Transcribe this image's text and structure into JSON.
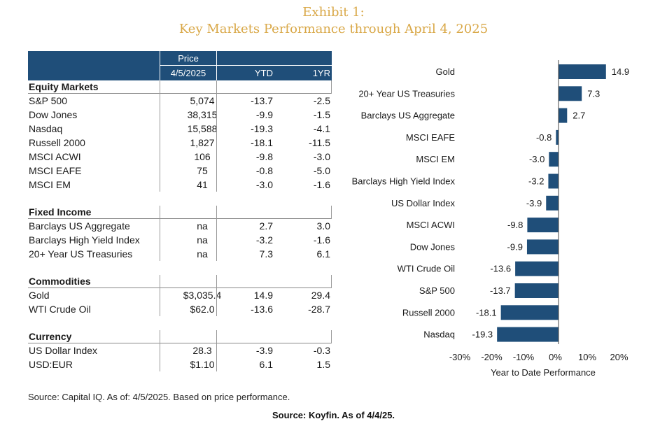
{
  "title": {
    "line1": "Exhibit 1:",
    "line2": "Key Markets Performance through April 4, 2025"
  },
  "table": {
    "header": {
      "price": "Price",
      "date": "4/5/2025",
      "ytd": "YTD",
      "one_yr": "1YR"
    },
    "sections": [
      {
        "title": "Equity Markets",
        "rows": [
          {
            "name": "S&P 500",
            "price": "5,074",
            "ytd": "-13.7",
            "one_yr": "-2.5"
          },
          {
            "name": "Dow Jones",
            "price": "38,315",
            "ytd": "-9.9",
            "one_yr": "-1.5"
          },
          {
            "name": "Nasdaq",
            "price": "15,588",
            "ytd": "-19.3",
            "one_yr": "-4.1"
          },
          {
            "name": "Russell 2000",
            "price": "1,827",
            "ytd": "-18.1",
            "one_yr": "-11.5"
          },
          {
            "name": "MSCI ACWI",
            "price": "106",
            "ytd": "-9.8",
            "one_yr": "-3.0"
          },
          {
            "name": "MSCI EAFE",
            "price": "75",
            "ytd": "-0.8",
            "one_yr": "-5.0"
          },
          {
            "name": "MSCI EM",
            "price": "41",
            "ytd": "-3.0",
            "one_yr": "-1.6"
          }
        ]
      },
      {
        "title": "Fixed Income",
        "rows": [
          {
            "name": "Barclays US Aggregate",
            "price": "na",
            "ytd": "2.7",
            "one_yr": "3.0"
          },
          {
            "name": "Barclays High Yield Index",
            "price": "na",
            "ytd": "-3.2",
            "one_yr": "-1.6"
          },
          {
            "name": "20+ Year US Treasuries",
            "price": "na",
            "ytd": "7.3",
            "one_yr": "6.1"
          }
        ]
      },
      {
        "title": "Commodities",
        "rows": [
          {
            "name": "Gold",
            "price": "$3,035.4",
            "ytd": "14.9",
            "one_yr": "29.4"
          },
          {
            "name": "WTI Crude Oil",
            "price": "$62.0",
            "ytd": "-13.6",
            "one_yr": "-28.7"
          }
        ]
      },
      {
        "title": "Currency",
        "rows": [
          {
            "name": "US Dollar Index",
            "price": "28.3",
            "ytd": "-3.9",
            "one_yr": "-0.3"
          },
          {
            "name": "USD:EUR",
            "price": "$1.10",
            "ytd": "6.1",
            "one_yr": "1.5"
          }
        ]
      }
    ]
  },
  "source_table": "Source: Capital IQ. As of: 4/5/2025. Based on price performance.",
  "source_chart": "Source: Koyfin. As of 4/4/25.",
  "colors": {
    "title": "#d9a848",
    "bar": "#1f4e79",
    "header_bg": "#1f4e79"
  },
  "chart_data": {
    "type": "bar",
    "orientation": "horizontal",
    "categories": [
      "Gold",
      "20+ Year US Treasuries",
      "Barclays US Aggregate",
      "MSCI EAFE",
      "MSCI EM",
      "Barclays High Yield Index",
      "US Dollar Index",
      "MSCI ACWI",
      "Dow Jones",
      "WTI Crude Oil",
      "S&P 500",
      "Russell 2000",
      "Nasdaq"
    ],
    "values": [
      14.9,
      7.3,
      2.7,
      -0.8,
      -3.0,
      -3.2,
      -3.9,
      -9.8,
      -9.9,
      -13.6,
      -13.7,
      -18.1,
      -19.3
    ],
    "value_labels": [
      "14.9",
      "7.3",
      "2.7",
      "-0.8",
      "-3.0",
      "-3.2",
      "-3.9",
      "-9.8",
      "-9.9",
      "-13.6",
      "-13.7",
      "-18.1",
      "-19.3"
    ],
    "xlabel": "Year to Date Performance",
    "xlim": [
      -30,
      20
    ],
    "xticks": [
      -30,
      -20,
      -10,
      0,
      10,
      20
    ],
    "xtick_labels": [
      "-30%",
      "-20%",
      "-10%",
      "0%",
      "10%",
      "20%"
    ],
    "grid": false
  }
}
